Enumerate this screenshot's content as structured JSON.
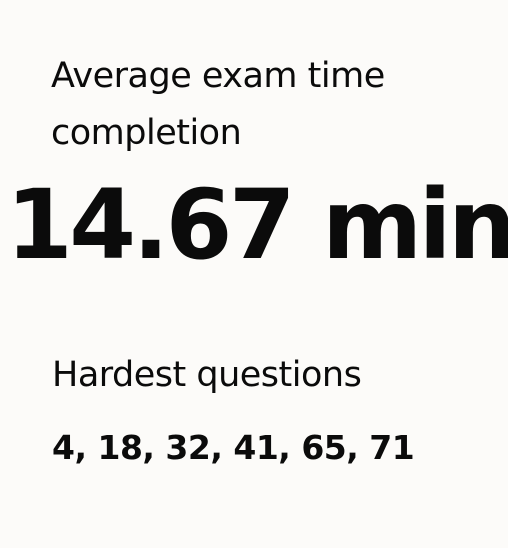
{
  "average": {
    "title": "Average exam time completion",
    "value": "14.67 min"
  },
  "hardest": {
    "title": "Hardest questions",
    "value": "4, 18, 32, 41, 65, 71"
  },
  "colors": {
    "background": "#fcfbf9",
    "text": "#0b0b0b"
  }
}
